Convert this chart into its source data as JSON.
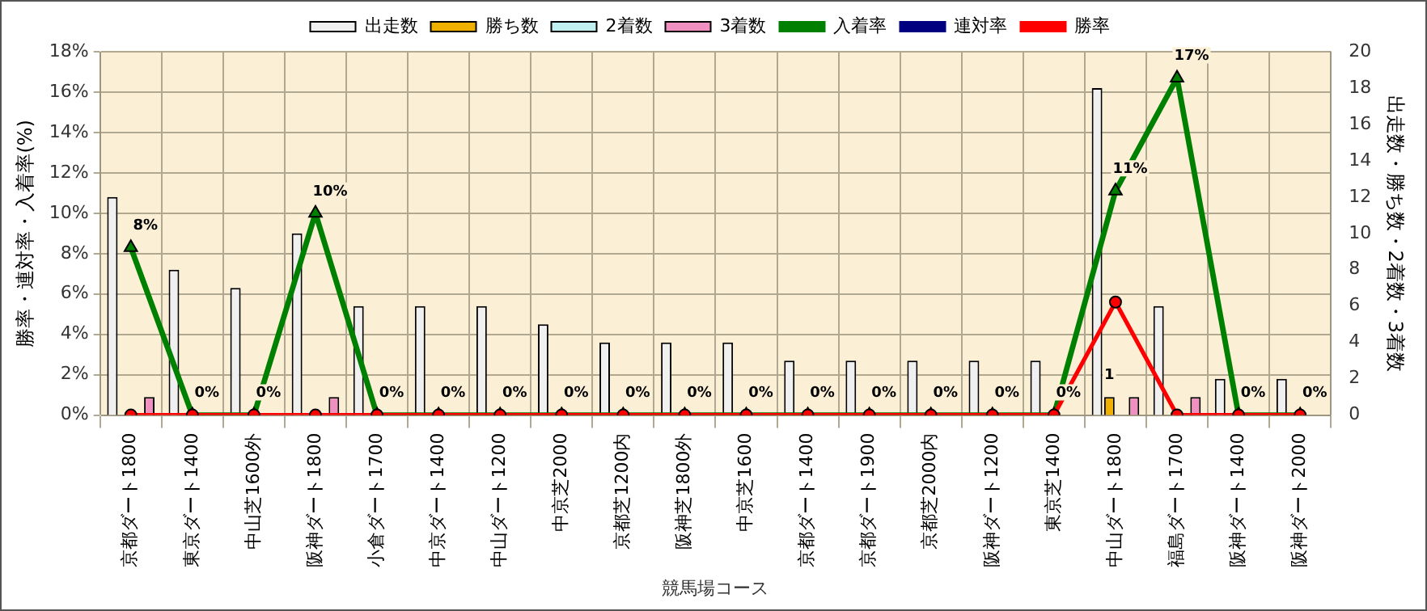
{
  "chart_data": {
    "type": "bar",
    "xlabel": "競馬場コース",
    "ylabel": "勝率・連対率・入着率(%)",
    "y2label": "出走数・勝ち数・2着数・3着数",
    "categories": [
      "京都ダート1800",
      "東京ダート1400",
      "中山芝1600外",
      "阪神ダート1800",
      "小倉ダート1700",
      "中京ダート1400",
      "中山ダート1200",
      "中京芝2000",
      "京都芝1200内",
      "阪神芝1800外",
      "中京芝1600",
      "京都ダート1400",
      "京都ダート1900",
      "京都芝2000内",
      "阪神ダート1200",
      "東京芝1400",
      "中山ダート1800",
      "福島ダート1700",
      "阪神ダート1400",
      "阪神ダート2000"
    ],
    "series": [
      {
        "name": "出走数",
        "type": "bar",
        "axis": "y2",
        "color": "#f0f0f0",
        "values": [
          12,
          8,
          7,
          10,
          6,
          6,
          6,
          5,
          4,
          4,
          4,
          3,
          3,
          3,
          3,
          3,
          18,
          6,
          2,
          2
        ]
      },
      {
        "name": "勝ち数",
        "type": "bar",
        "axis": "y2",
        "color": "#f0b000",
        "values": [
          0,
          0,
          0,
          0,
          0,
          0,
          0,
          0,
          0,
          0,
          0,
          0,
          0,
          0,
          0,
          0,
          1,
          0,
          0,
          0
        ],
        "value_labels": [
          null,
          null,
          null,
          null,
          null,
          null,
          null,
          null,
          null,
          null,
          null,
          null,
          null,
          null,
          null,
          null,
          "1",
          null,
          null,
          null
        ]
      },
      {
        "name": "2着数",
        "type": "bar",
        "axis": "y2",
        "color": "#c0f0f0",
        "values": [
          0,
          0,
          0,
          0,
          0,
          0,
          0,
          0,
          0,
          0,
          0,
          0,
          0,
          0,
          0,
          0,
          0,
          0,
          0,
          0
        ]
      },
      {
        "name": "3着数",
        "type": "bar",
        "axis": "y2",
        "color": "#f090c0",
        "values": [
          1,
          0,
          0,
          1,
          0,
          0,
          0,
          0,
          0,
          0,
          0,
          0,
          0,
          0,
          0,
          0,
          1,
          1,
          0,
          0
        ]
      },
      {
        "name": "入着率",
        "type": "line",
        "color": "#008000",
        "marker": "triangle",
        "values": [
          8.3,
          0,
          0,
          10,
          0,
          0,
          0,
          0,
          0,
          0,
          0,
          0,
          0,
          0,
          0,
          0,
          11.1,
          16.7,
          0,
          0
        ],
        "value_labels": [
          "8%",
          "0%",
          "0%",
          "10%",
          "0%",
          "0%",
          "0%",
          "0%",
          "0%",
          "0%",
          "0%",
          "0%",
          "0%",
          "0%",
          "0%",
          "0%",
          "11%",
          "17%",
          "0%",
          "0%"
        ]
      },
      {
        "name": "連対率",
        "type": "line",
        "color": "#000080",
        "marker": "diamond",
        "values": [
          null,
          null,
          null,
          null,
          null,
          null,
          null,
          null,
          null,
          null,
          null,
          null,
          null,
          null,
          null,
          null,
          null,
          null,
          null,
          null
        ]
      },
      {
        "name": "勝率",
        "type": "line",
        "color": "#ff0000",
        "marker": "circle",
        "values": [
          0,
          0,
          0,
          0,
          0,
          0,
          0,
          0,
          0,
          0,
          0,
          0,
          0,
          0,
          0,
          0,
          5.6,
          0,
          0,
          0
        ]
      }
    ],
    "ylim": [
      0,
      18
    ],
    "yticks": [
      {
        "value": 0,
        "label": "0%"
      },
      {
        "value": 2,
        "label": "2%"
      },
      {
        "value": 4,
        "label": "4%"
      },
      {
        "value": 6,
        "label": "6%"
      },
      {
        "value": 8,
        "label": "8%"
      },
      {
        "value": 10,
        "label": "10%"
      },
      {
        "value": 12,
        "label": "12%"
      },
      {
        "value": 14,
        "label": "14%"
      },
      {
        "value": 16,
        "label": "16%"
      },
      {
        "value": 18,
        "label": "18%"
      }
    ],
    "y2lim": [
      0,
      20
    ],
    "y2ticks": [
      0,
      2,
      4,
      6,
      8,
      10,
      12,
      14,
      16,
      18,
      20
    ],
    "grid": true,
    "legend": "top"
  }
}
